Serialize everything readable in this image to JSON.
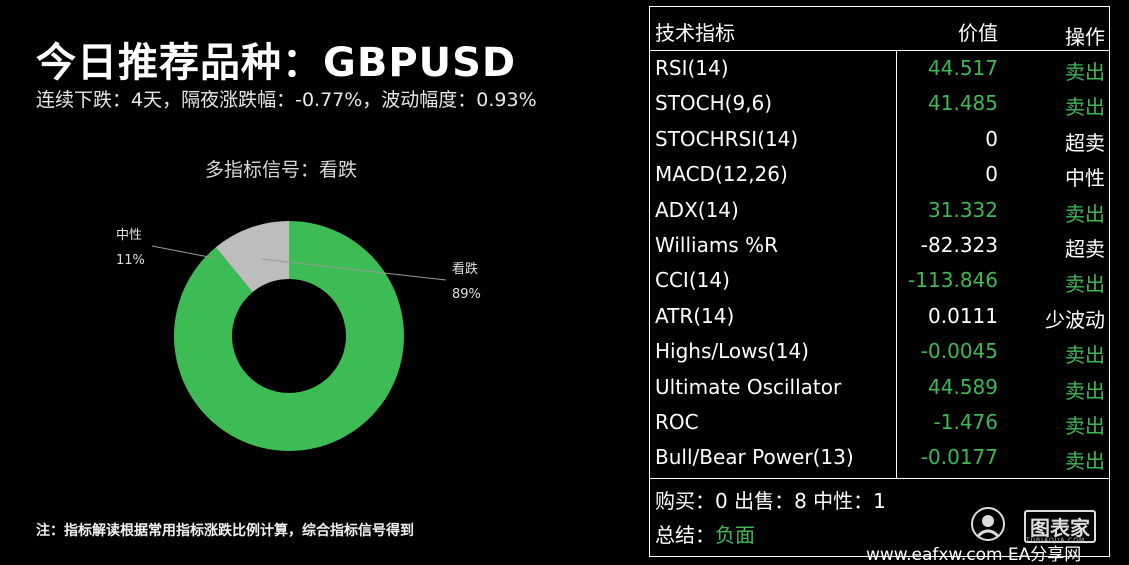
{
  "header": {
    "title": "今日推荐品种：GBPUSD",
    "subtitle": "连续下跌：4天，隔夜涨跌幅：-0.77%，波动幅度：0.93%"
  },
  "note": "注：指标解读根据常用指标涨跌比例计算，综合指标信号得到",
  "chart_data": {
    "type": "pie",
    "title": "多指标信号：看跌",
    "categories": [
      "看跌",
      "中性"
    ],
    "values": [
      89,
      11
    ],
    "value_labels": [
      "89%",
      "11%"
    ],
    "colors": [
      "#3dbb54",
      "#bdbdbd"
    ],
    "donut": true
  },
  "table": {
    "headers": [
      "技术指标",
      "价值",
      "操作"
    ],
    "rows": [
      {
        "name": "RSI(14)",
        "value": "44.517",
        "action": "卖出",
        "color": "#3db954"
      },
      {
        "name": "STOCH(9,6)",
        "value": "41.485",
        "action": "卖出",
        "color": "#3db954"
      },
      {
        "name": "STOCHRSI(14)",
        "value": "0",
        "action": "超卖",
        "color": "#ffffff"
      },
      {
        "name": "MACD(12,26)",
        "value": "0",
        "action": "中性",
        "color": "#ffffff"
      },
      {
        "name": "ADX(14)",
        "value": "31.332",
        "action": "卖出",
        "color": "#3db954"
      },
      {
        "name": "Williams %R",
        "value": "-82.323",
        "action": "超卖",
        "color": "#ffffff"
      },
      {
        "name": "CCI(14)",
        "value": "-113.846",
        "action": "卖出",
        "color": "#3db954"
      },
      {
        "name": "ATR(14)",
        "value": "0.0111",
        "action": "少波动",
        "color": "#ffffff"
      },
      {
        "name": "Highs/Lows(14)",
        "value": "-0.0045",
        "action": "卖出",
        "color": "#3db954"
      },
      {
        "name": "Ultimate Oscillator",
        "value": "44.589",
        "action": "卖出",
        "color": "#3db954"
      },
      {
        "name": "ROC",
        "value": "-1.476",
        "action": "卖出",
        "color": "#3db954"
      },
      {
        "name": "Bull/Bear Power(13)",
        "value": "-0.0177",
        "action": "卖出",
        "color": "#3db954"
      }
    ],
    "summary_counts": "购买：0 出售：8 中性：1",
    "summary_label": "总结：",
    "summary_value": "负面"
  },
  "watermark": {
    "brand": "图表家",
    "brand_sub": "TUBIAOJIA.COM",
    "site": "www.eafxw.com EA分享网"
  }
}
